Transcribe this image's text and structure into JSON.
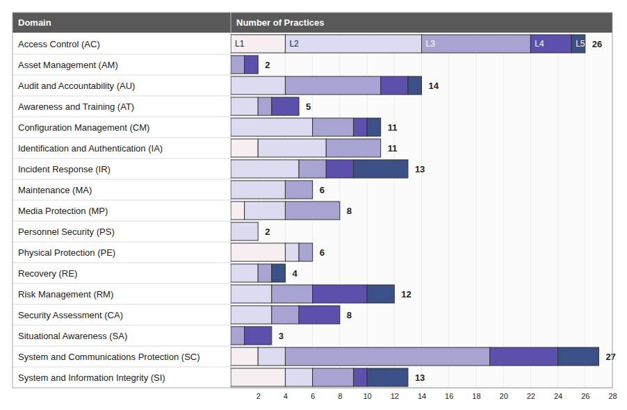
{
  "chart_data": {
    "type": "bar",
    "orientation": "horizontal",
    "stacked": true,
    "grid": true,
    "x_label": "Number of Practices",
    "y_label": "Domain",
    "categories": [
      "Access Control (AC)",
      "Asset Management (AM)",
      "Audit and Accountability (AU)",
      "Awareness and Training (AT)",
      "Configuration Management (CM)",
      "Identification and Authentication (IA)",
      "Incident Response (IR)",
      "Maintenance (MA)",
      "Media Protection (MP)",
      "Personnel Security (PS)",
      "Physical Protection (PE)",
      "Recovery (RE)",
      "Risk Management (RM)",
      "Security Assessment (CA)",
      "Situational Awareness (SA)",
      "System and Communications Protection (SC)",
      "System and Information Integrity (SI)"
    ],
    "series": [
      {
        "name": "L1",
        "color": "#f7eef2",
        "values": [
          4,
          0,
          0,
          0,
          0,
          2,
          0,
          0,
          1,
          0,
          4,
          0,
          0,
          0,
          0,
          2,
          4
        ]
      },
      {
        "name": "L2",
        "color": "#dddbef",
        "values": [
          10,
          0,
          4,
          2,
          6,
          5,
          5,
          4,
          3,
          2,
          1,
          2,
          3,
          3,
          0,
          2,
          2
        ]
      },
      {
        "name": "L3",
        "color": "#a7a4d2",
        "values": [
          8,
          1,
          7,
          1,
          3,
          4,
          2,
          2,
          4,
          0,
          1,
          1,
          3,
          2,
          1,
          15,
          3
        ]
      },
      {
        "name": "L4",
        "color": "#5d50ad",
        "values": [
          3,
          1,
          2,
          2,
          1,
          0,
          2,
          0,
          0,
          0,
          0,
          0,
          4,
          3,
          2,
          5,
          1
        ]
      },
      {
        "name": "L5",
        "color": "#3a5086",
        "values": [
          1,
          0,
          1,
          0,
          1,
          0,
          4,
          0,
          0,
          0,
          0,
          1,
          2,
          0,
          0,
          3,
          3
        ]
      }
    ],
    "totals": [
      26,
      2,
      14,
      5,
      11,
      11,
      13,
      6,
      8,
      2,
      6,
      4,
      12,
      8,
      3,
      27,
      13
    ],
    "xlim": [
      0,
      28
    ],
    "xticks": [
      2,
      4,
      6,
      8,
      10,
      12,
      14,
      16,
      18,
      20,
      22,
      24,
      26,
      28
    ]
  }
}
